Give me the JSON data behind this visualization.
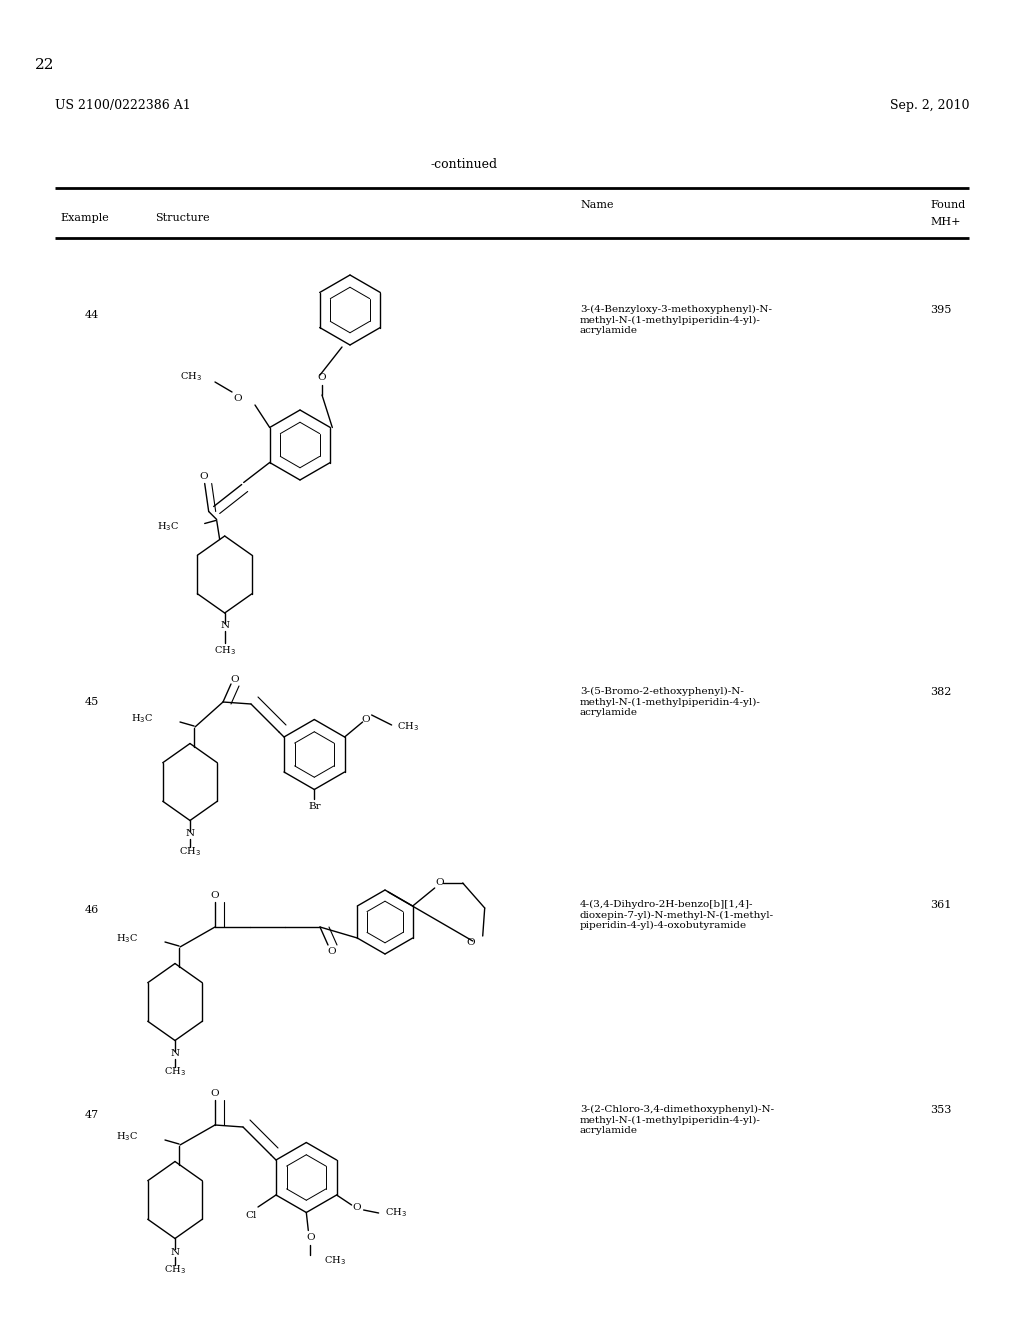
{
  "page_num": "22",
  "patent_left": "US 2100/0222386 A1",
  "patent_right": "Sep. 2, 2010",
  "continued_text": "-continued",
  "bg_color": "#ffffff",
  "text_color": "#000000",
  "entries": [
    {
      "example": "44",
      "name": "3-(4-Benzyloxy-3-methoxyphenyl)-N-\nmethyl-N-(1-methylpiperidin-4-yl)-\nacrylamide",
      "mh": "395"
    },
    {
      "example": "45",
      "name": "3-(5-Bromo-2-ethoxyphenyl)-N-\nmethyl-N-(1-methylpiperidin-4-yl)-\nacrylamide",
      "mh": "382"
    },
    {
      "example": "46",
      "name": "4-(3,4-Dihydro-2H-benzo[b][1,4]-\ndioxepin-7-yl)-N-methyl-N-(1-methyl-\npiperidin-4-yl)-4-oxobutyramide",
      "mh": "361"
    },
    {
      "example": "47",
      "name": "3-(2-Chloro-3,4-dimethoxyphenyl)-N-\nmethyl-N-(1-methylpiperidin-4-yl)-\nacrylamide",
      "mh": "353"
    }
  ]
}
